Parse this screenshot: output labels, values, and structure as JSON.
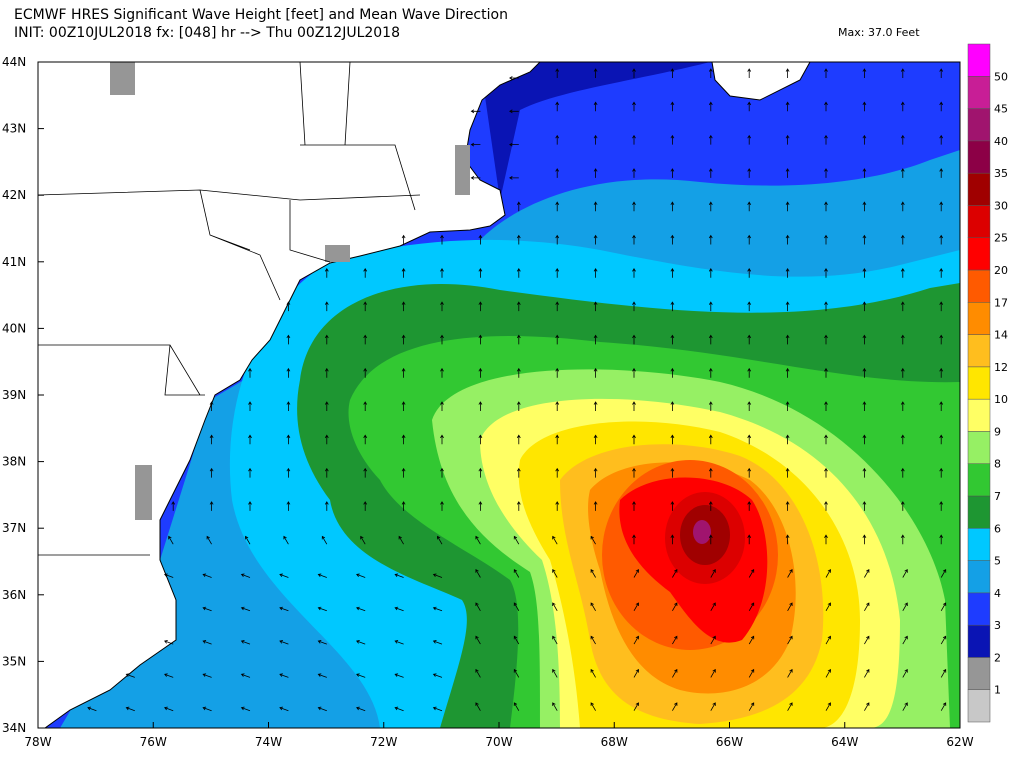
{
  "header": {
    "title": "ECMWF HRES Significant Wave Height [feet] and Mean Wave Direction",
    "subtitle": "INIT: 00Z10JUL2018 fx: [048] hr --> Thu 00Z12JUL2018",
    "max": "Max: 37.0 Feet"
  },
  "axes": {
    "lat": [
      "44N",
      "43N",
      "42N",
      "41N",
      "40N",
      "39N",
      "38N",
      "37N",
      "36N",
      "35N",
      "34N"
    ],
    "lon": [
      "78W",
      "76W",
      "74W",
      "72W",
      "70W",
      "68W",
      "66W",
      "64W",
      "62W"
    ]
  },
  "colorbar": {
    "labels": [
      "1",
      "2",
      "3",
      "4",
      "5",
      "6",
      "7",
      "8",
      "9",
      "10",
      "12",
      "14",
      "17",
      "20",
      "25",
      "30",
      "35",
      "40",
      "45",
      "50"
    ],
    "colors": [
      "#c8c8c8",
      "#969696",
      "#0a14b4",
      "#1e3cff",
      "#14a0e6",
      "#00c8ff",
      "#1e9632",
      "#32c832",
      "#96f064",
      "#ffff64",
      "#ffe600",
      "#ffbe1e",
      "#ff8c00",
      "#ff5a00",
      "#ff0000",
      "#dc0000",
      "#a00000",
      "#8c0046",
      "#a0146e",
      "#c81e96",
      "#ff00ff"
    ]
  }
}
